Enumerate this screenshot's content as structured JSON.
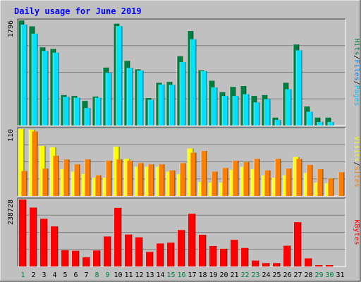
{
  "title": "Daily usage for June 2019",
  "colors": {
    "title": "#0000ff",
    "background": "#c0c0c0",
    "hits": "#008040",
    "files": "#00e0ff",
    "pages": "#00c0ff",
    "visits": "#ffff00",
    "sites": "#ff8000",
    "kbytes": "#ff0000",
    "weekend_label": "#008040",
    "weekday_label": "#000000"
  },
  "chart_data": [
    {
      "type": "bar",
      "panel": "hits_files_pages",
      "categories": [
        "1",
        "2",
        "3",
        "4",
        "5",
        "6",
        "7",
        "8",
        "9",
        "10",
        "11",
        "12",
        "13",
        "14",
        "15",
        "16",
        "17",
        "18",
        "19",
        "20",
        "21",
        "22",
        "23",
        "24",
        "25",
        "26",
        "27",
        "28",
        "29",
        "30",
        "31"
      ],
      "ymax_label": "1796",
      "ylim": [
        0,
        1796
      ],
      "series": [
        {
          "name": "Hits",
          "values": [
            1796,
            1695,
            1335,
            1310,
            520,
            505,
            420,
            495,
            990,
            1740,
            1105,
            960,
            470,
            730,
            745,
            1185,
            1615,
            945,
            765,
            570,
            660,
            675,
            505,
            520,
            135,
            730,
            1385,
            325,
            135,
            135,
            0
          ]
        },
        {
          "name": "Files",
          "values": [
            1725,
            1570,
            1275,
            1245,
            490,
            475,
            300,
            475,
            900,
            1700,
            985,
            940,
            440,
            700,
            695,
            1085,
            1475,
            930,
            650,
            505,
            505,
            535,
            395,
            450,
            95,
            620,
            1285,
            235,
            60,
            60,
            0
          ]
        },
        {
          "name": "Pages",
          "values": [
            0,
            0,
            0,
            0,
            0,
            0,
            0,
            0,
            0,
            0,
            0,
            0,
            0,
            0,
            0,
            0,
            0,
            0,
            0,
            0,
            0,
            0,
            0,
            0,
            0,
            0,
            0,
            0,
            0,
            0,
            0
          ]
        }
      ],
      "legend": [
        {
          "label": "Pages",
          "color": "#00c0ff"
        },
        {
          "label": "/",
          "color": "#000000"
        },
        {
          "label": "Files",
          "color": "#0080ff"
        },
        {
          "label": "/",
          "color": "#000000"
        },
        {
          "label": "Hits",
          "color": "#008040"
        }
      ]
    },
    {
      "type": "bar",
      "panel": "visits_sites",
      "ymax_label": "110",
      "ylim": [
        0,
        110
      ],
      "series": [
        {
          "name": "Visits",
          "values": [
            110,
            109,
            82,
            80,
            44,
            40,
            36,
            30,
            30,
            81,
            61,
            48,
            48,
            48,
            40,
            36,
            78,
            23,
            22,
            22,
            43,
            48,
            44,
            34,
            30,
            34,
            64,
            38,
            22,
            21,
            0
          ]
        },
        {
          "name": "Sites",
          "values": [
            41,
            106,
            45,
            66,
            60,
            52,
            60,
            34,
            58,
            60,
            58,
            54,
            52,
            52,
            42,
            54,
            71,
            74,
            40,
            46,
            58,
            56,
            61,
            42,
            61,
            45,
            61,
            51,
            44,
            29,
            39
          ]
        }
      ],
      "legend": [
        {
          "label": "Sites",
          "color": "#ff8000"
        },
        {
          "label": "/",
          "color": "#000000"
        },
        {
          "label": "Visits",
          "color": "#ffff00"
        }
      ]
    },
    {
      "type": "bar",
      "panel": "kbytes",
      "ymax_label": "238728",
      "ylim": [
        0,
        238728
      ],
      "series": [
        {
          "name": "KBytes",
          "values": [
            238728,
            210000,
            170000,
            143000,
            58000,
            56000,
            33000,
            57000,
            107000,
            209000,
            114000,
            104000,
            52000,
            82000,
            85000,
            130000,
            188000,
            113000,
            73000,
            63000,
            95000,
            66000,
            21000,
            12000,
            12000,
            74000,
            158000,
            29000,
            5000,
            5000,
            0
          ]
        }
      ],
      "legend": [
        {
          "label": "KBytes",
          "color": "#ff0000"
        }
      ]
    }
  ],
  "weekend_days": [
    1,
    8,
    9,
    15,
    16,
    22,
    23,
    29,
    30
  ]
}
